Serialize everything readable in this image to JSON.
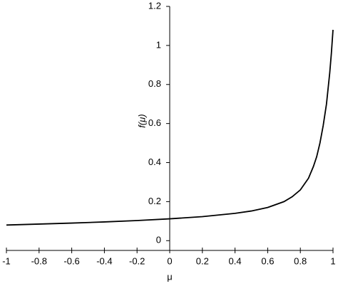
{
  "chart_data": {
    "type": "line",
    "xlabel": "μ",
    "ylabel": "f(μ)",
    "x": [
      -1,
      -0.8,
      -0.6,
      -0.4,
      -0.2,
      0,
      0.2,
      0.4,
      0.5,
      0.6,
      0.7,
      0.75,
      0.8,
      0.85,
      0.88,
      0.9,
      0.92,
      0.94,
      0.96,
      0.98,
      0.99,
      1
    ],
    "values": [
      0.08,
      0.085,
      0.09,
      0.096,
      0.103,
      0.112,
      0.123,
      0.14,
      0.152,
      0.17,
      0.2,
      0.225,
      0.26,
      0.32,
      0.38,
      0.43,
      0.5,
      0.59,
      0.7,
      0.86,
      0.96,
      1.08
    ],
    "color": "#000000",
    "xlim": [
      -1,
      1
    ],
    "ylim": [
      -0.05,
      1.2
    ],
    "xticks": [
      -1,
      -0.8,
      -0.6,
      -0.4,
      -0.2,
      0,
      0.2,
      0.4,
      0.6,
      0.8,
      1
    ],
    "yticks": [
      0,
      0.2,
      0.4,
      0.6,
      0.8,
      1,
      1.2
    ]
  }
}
